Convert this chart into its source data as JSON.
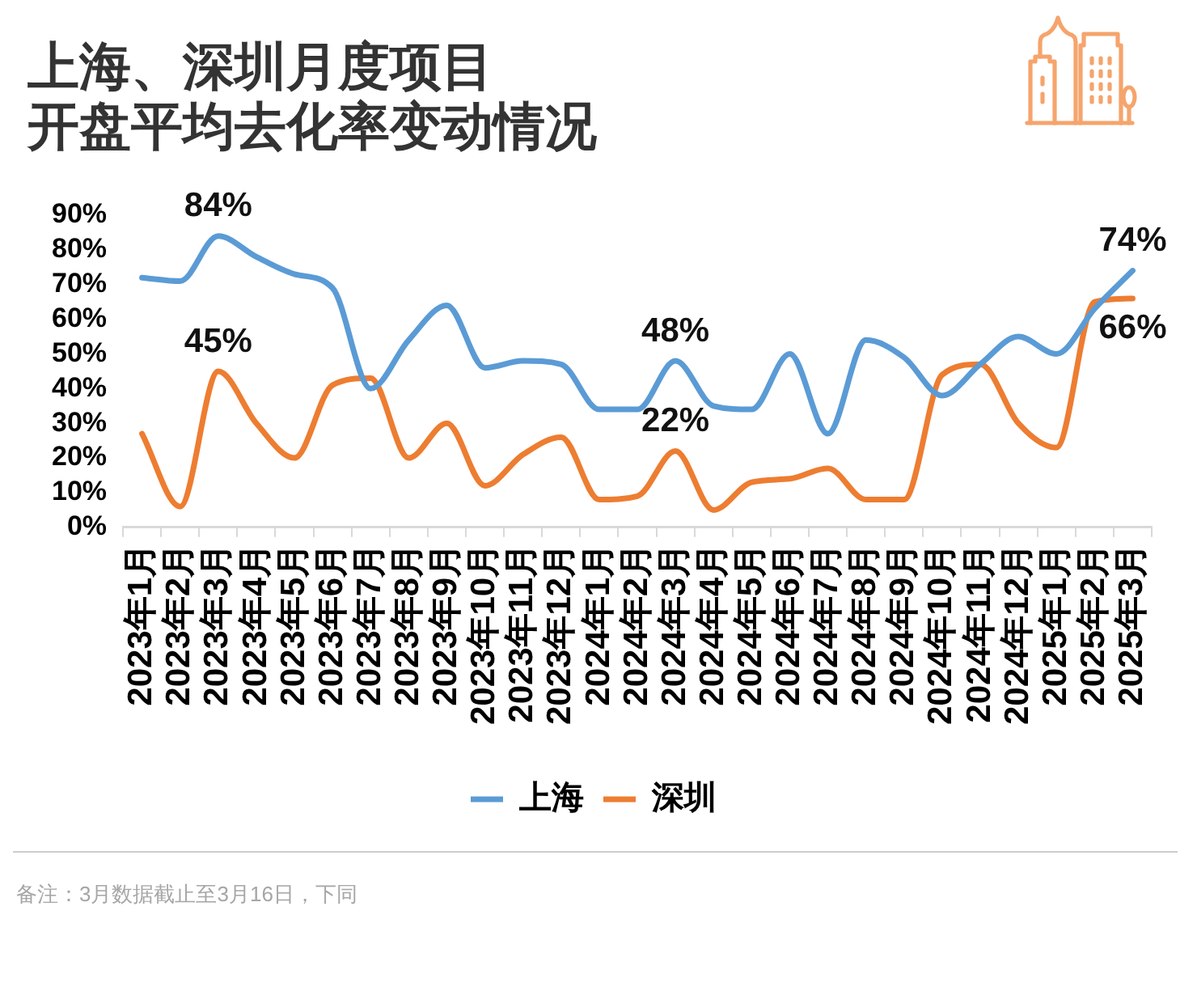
{
  "chart_data": {
    "type": "line",
    "title": "上海、深圳月度项目开盘平均去化率变动情况",
    "categories": [
      "2023年1月",
      "2023年2月",
      "2023年3月",
      "2023年4月",
      "2023年5月",
      "2023年6月",
      "2023年7月",
      "2023年8月",
      "2023年9月",
      "2023年10月",
      "2023年11月",
      "2023年12月",
      "2024年1月",
      "2024年2月",
      "2024年3月",
      "2024年4月",
      "2024年5月",
      "2024年6月",
      "2024年7月",
      "2024年8月",
      "2024年9月",
      "2024年10月",
      "2024年11月",
      "2024年12月",
      "2025年1月",
      "2025年2月",
      "2025年3月"
    ],
    "series": [
      {
        "name": "上海",
        "color": "#5b9bd5",
        "values": [
          72,
          71,
          84,
          78,
          73,
          69,
          40,
          54,
          64,
          46,
          48,
          47,
          34,
          34,
          48,
          35,
          34,
          50,
          27,
          54,
          49,
          38,
          47,
          55,
          50,
          63,
          74
        ],
        "value_labels": [
          null,
          null,
          "84%",
          null,
          null,
          null,
          null,
          null,
          null,
          null,
          null,
          null,
          null,
          null,
          "48%",
          null,
          null,
          null,
          null,
          null,
          null,
          null,
          null,
          null,
          null,
          null,
          "74%"
        ]
      },
      {
        "name": "深圳",
        "color": "#ed7d31",
        "values": [
          27,
          6,
          45,
          30,
          20,
          41,
          43,
          20,
          30,
          12,
          21,
          26,
          8,
          9,
          22,
          5,
          13,
          14,
          17,
          8,
          8,
          44,
          47,
          30,
          23,
          65,
          66
        ],
        "value_labels": [
          null,
          null,
          "45%",
          null,
          null,
          null,
          null,
          null,
          null,
          null,
          null,
          null,
          null,
          null,
          "22%",
          null,
          null,
          null,
          null,
          null,
          null,
          null,
          null,
          null,
          null,
          null,
          "66%"
        ]
      }
    ],
    "ylim": [
      0,
      90
    ],
    "yticks": [
      {
        "value": 0,
        "label": "0%"
      },
      {
        "value": 10,
        "label": "10%"
      },
      {
        "value": 20,
        "label": "20%"
      },
      {
        "value": 30,
        "label": "30%"
      },
      {
        "value": 40,
        "label": "40%"
      },
      {
        "value": 50,
        "label": "50%"
      },
      {
        "value": 60,
        "label": "60%"
      },
      {
        "value": 70,
        "label": "70%"
      },
      {
        "value": 80,
        "label": "80%"
      },
      {
        "value": 90,
        "label": "90%"
      }
    ],
    "legend": "bottom",
    "annotations": [
      "备注：3月数据截止至3月16日，下同"
    ]
  }
}
